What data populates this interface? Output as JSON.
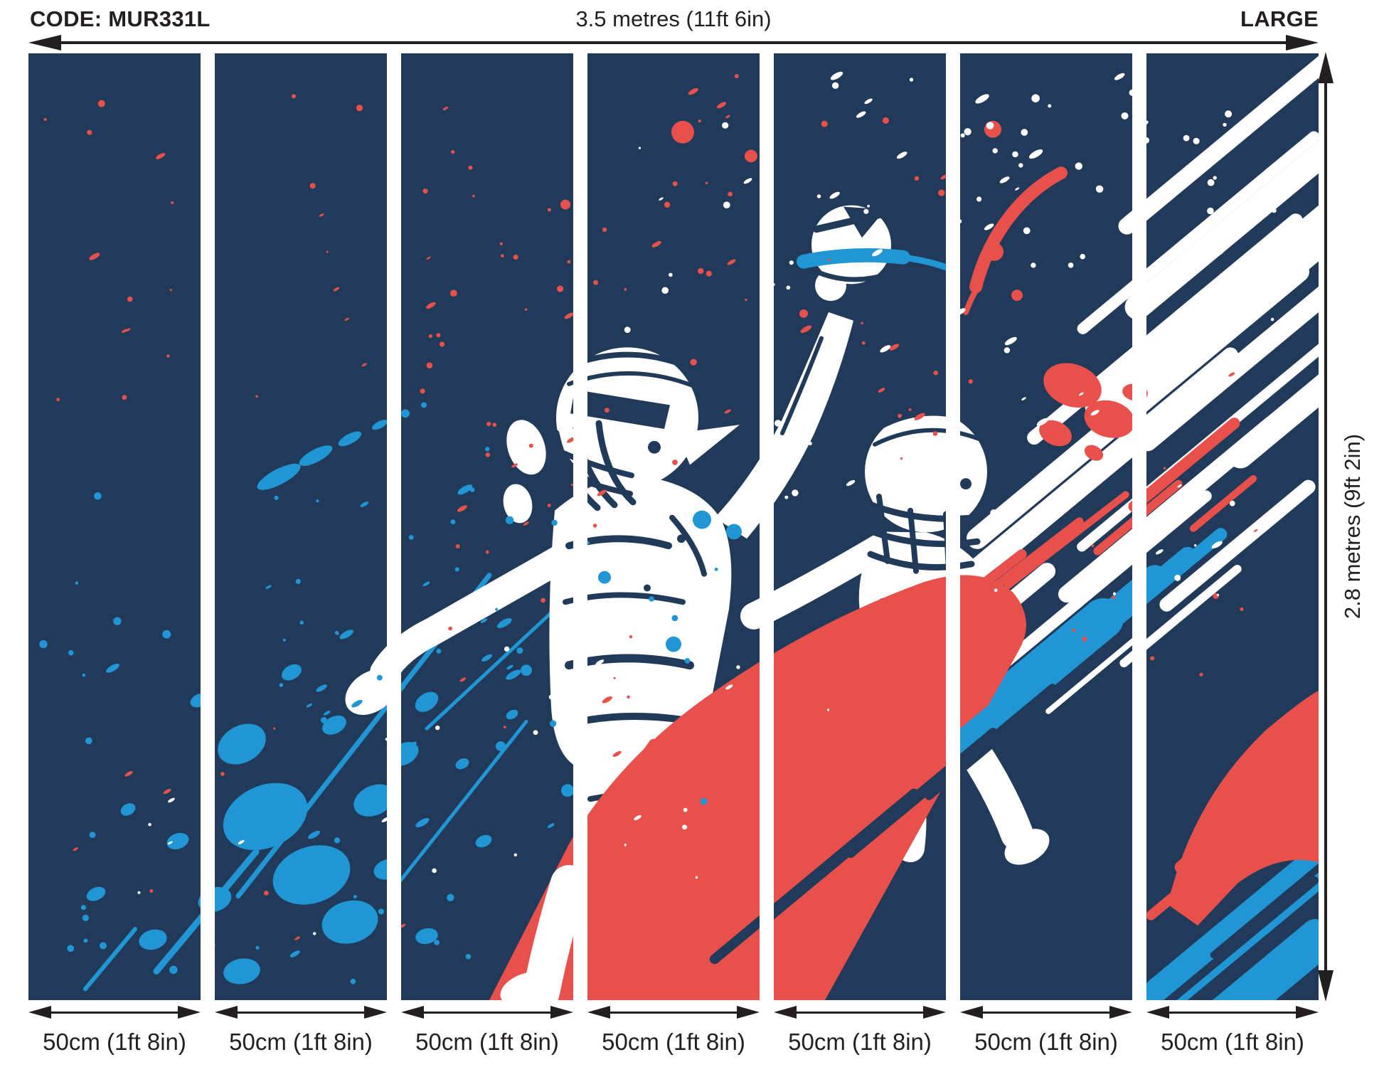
{
  "palette": {
    "navy": "#213a59",
    "blue": "#2196d4",
    "red": "#e8504c",
    "ink": "#231f20",
    "white": "#ffffff"
  },
  "header": {
    "code_label": "CODE: MUR331L",
    "width_label": "3.5 metres (11ft 6in)",
    "size_label": "LARGE"
  },
  "side": {
    "height_label": "2.8 metres (9ft 2in)"
  },
  "panels": [
    {
      "width_label": "50cm (1ft 8in)"
    },
    {
      "width_label": "50cm (1ft 8in)"
    },
    {
      "width_label": "50cm (1ft 8in)"
    },
    {
      "width_label": "50cm (1ft 8in)"
    },
    {
      "width_label": "50cm (1ft 8in)"
    },
    {
      "width_label": "50cm (1ft 8in)"
    },
    {
      "width_label": "50cm (1ft 8in)"
    }
  ]
}
